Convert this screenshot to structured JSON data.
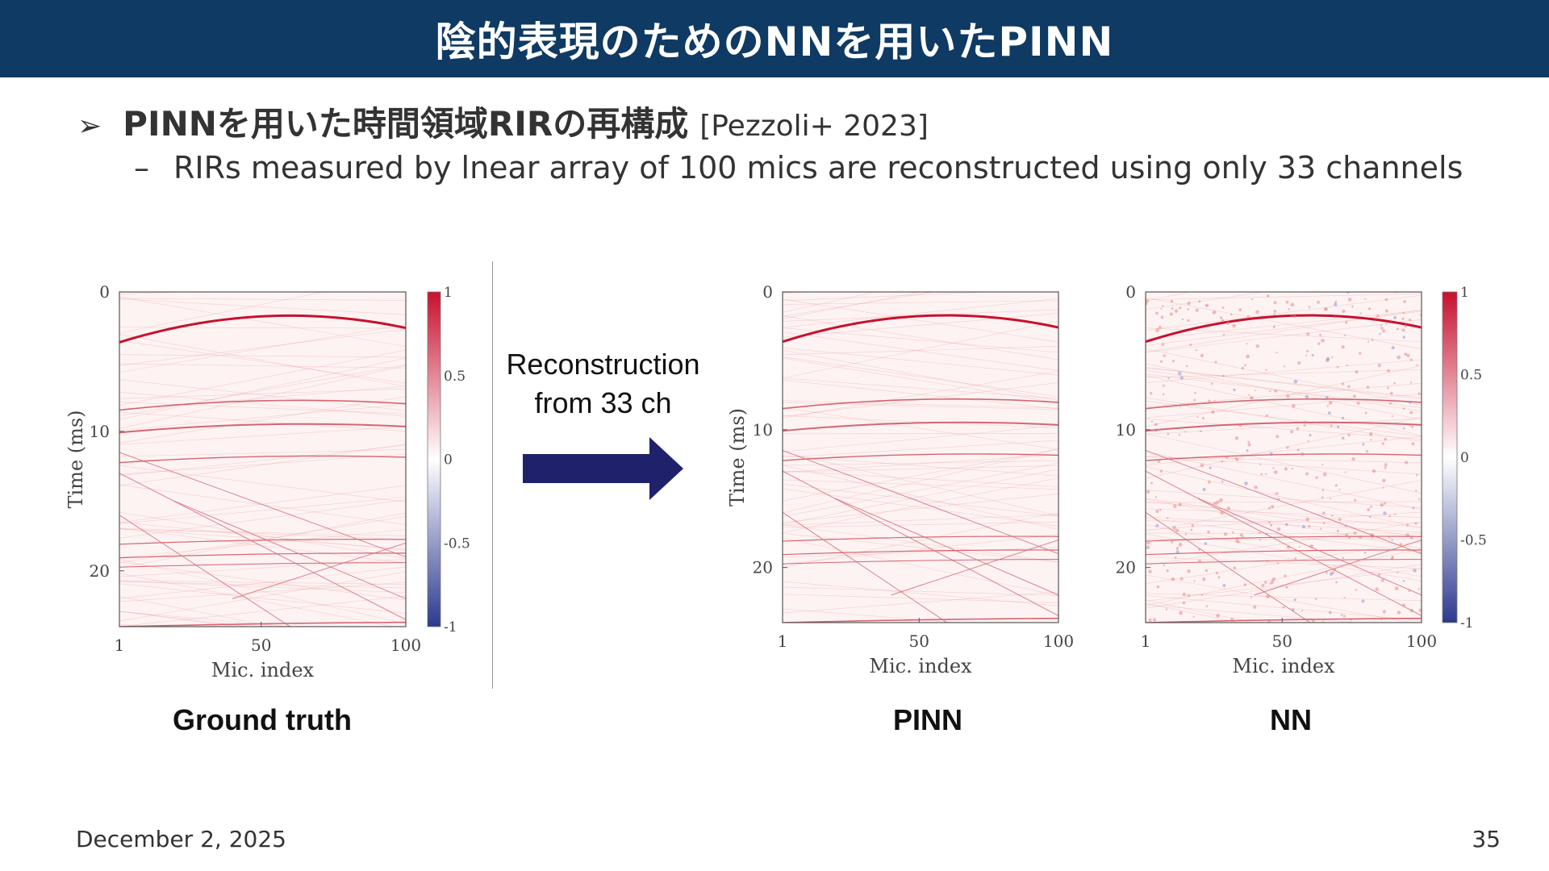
{
  "slide": {
    "title": "陰的表現のためのNNを用いたPINN",
    "bullet_marker": "➢",
    "bullet_text": "PINNを用いた時間領域RIRの再構成",
    "bullet_ref": "[Pezzoli+ 2023]",
    "sub_dash": "–",
    "sub_text": "RIRs measured by lnear array of 100 mics are reconstructed using only 33 channels",
    "date": "December 2, 2025",
    "page_number": "35",
    "recon_line1": "Reconstruction",
    "recon_line2": "from 33 ch",
    "colors": {
      "title_bg": "#0f3a63",
      "arrow": "#1f226b",
      "positive": "#c8102e",
      "negative": "#2b3990"
    }
  },
  "chart_data": [
    {
      "type": "heatmap",
      "title": "Ground truth",
      "xlabel": "Mic. index",
      "ylabel": "Time (ms)",
      "x_ticks": [
        "1",
        "50",
        "100"
      ],
      "y_ticks": [
        "0",
        "10",
        "20"
      ],
      "xlim": [
        1,
        100
      ],
      "ylim": [
        0,
        24
      ],
      "colorbar_ticks": [
        "1",
        "0.5",
        "0",
        "-0.5",
        "-1"
      ],
      "colorbar_range": [
        -1,
        1
      ]
    },
    {
      "type": "heatmap",
      "title": "PINN",
      "xlabel": "Mic. index",
      "ylabel": "Time (ms)",
      "x_ticks": [
        "1",
        "50",
        "100"
      ],
      "y_ticks": [
        "0",
        "10",
        "20"
      ],
      "xlim": [
        1,
        100
      ],
      "ylim": [
        0,
        24
      ]
    },
    {
      "type": "heatmap",
      "title": "NN",
      "xlabel": "Mic. index",
      "ylabel": "",
      "x_ticks": [
        "1",
        "50",
        "100"
      ],
      "y_ticks": [
        "0",
        "10",
        "20"
      ],
      "xlim": [
        1,
        100
      ],
      "ylim": [
        0,
        24
      ],
      "colorbar_ticks": [
        "1",
        "0.5",
        "0",
        "-0.5",
        "-1"
      ],
      "colorbar_range": [
        -1,
        1
      ]
    }
  ]
}
